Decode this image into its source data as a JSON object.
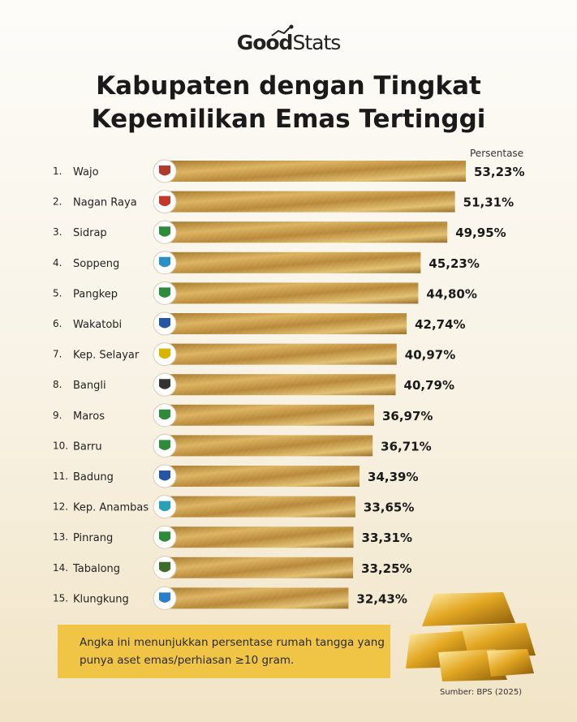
{
  "brand": {
    "good": "Good",
    "stats": "Stats"
  },
  "title_line1": "Kabupaten dengan Tingkat",
  "title_line2": "Kepemilikan Emas Tertinggi",
  "column_header": "Persentase",
  "note": "Angka ini menunjukkan persentase rumah tangga yang punya aset emas/perhiasan ≥10 gram.",
  "source": "Sumber: BPS (2025)",
  "colors": {
    "bar_light": "#e8c878",
    "bar_mid": "#c6973d",
    "bar_dark": "#8d6524",
    "note_bg": "#f0c545"
  },
  "chart_data": {
    "type": "bar",
    "orientation": "horizontal",
    "ranks": [
      "1.",
      "2.",
      "3.",
      "4.",
      "5.",
      "6.",
      "7.",
      "8.",
      "9.",
      "10.",
      "11.",
      "12.",
      "13.",
      "14.",
      "15."
    ],
    "categories": [
      "Wajo",
      "Nagan Raya",
      "Sidrap",
      "Soppeng",
      "Pangkep",
      "Wakatobi",
      "Kep. Selayar",
      "Bangli",
      "Maros",
      "Barru",
      "Badung",
      "Kep. Anambas",
      "Pinrang",
      "Tabalong",
      "Klungkung"
    ],
    "values": [
      53.23,
      51.31,
      49.95,
      45.23,
      44.8,
      42.74,
      40.97,
      40.79,
      36.97,
      36.71,
      34.39,
      33.65,
      33.31,
      33.25,
      32.43
    ],
    "value_labels": [
      "53,23%",
      "51,31%",
      "49,95%",
      "45,23%",
      "44,80%",
      "42,74%",
      "40,97%",
      "40,79%",
      "36,97%",
      "36,71%",
      "34,39%",
      "33,65%",
      "33,31%",
      "33,25%",
      "32,43%"
    ],
    "icons": [
      "wajo-emblem-icon",
      "nagan-raya-emblem-icon",
      "sidrap-emblem-icon",
      "soppeng-emblem-icon",
      "pangkep-emblem-icon",
      "wakatobi-emblem-icon",
      "kep-selayar-emblem-icon",
      "bangli-emblem-icon",
      "maros-emblem-icon",
      "barru-emblem-icon",
      "badung-emblem-icon",
      "kep-anambas-emblem-icon",
      "pinrang-emblem-icon",
      "tabalong-emblem-icon",
      "klungkung-emblem-icon"
    ],
    "icon_colors": [
      "#b03a2e",
      "#c0392b",
      "#2e8b3a",
      "#2a8fc7",
      "#2e8b3a",
      "#2456a3",
      "#d9b500",
      "#333333",
      "#2e8b3a",
      "#2e8b3a",
      "#2456a3",
      "#2a9fb8",
      "#2e8b3a",
      "#3d6b2a",
      "#2a7fc7"
    ],
    "xlim": [
      0,
      53.23
    ],
    "grid": false,
    "legend": "none"
  }
}
